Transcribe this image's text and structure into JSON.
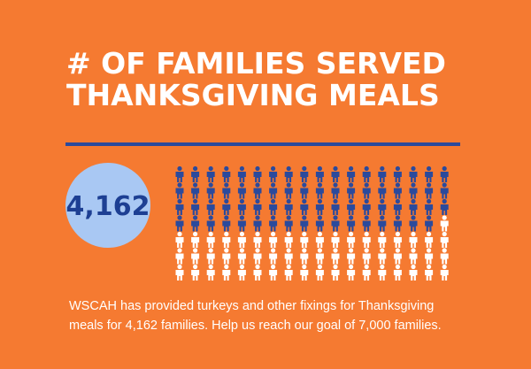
{
  "header": {
    "title_line1": "# OF FAMILIES SERVED",
    "title_line2": "THANKSGIVING MEALS"
  },
  "stat": {
    "value": "4,162"
  },
  "body": {
    "line1": "WSCAH has provided turkeys and other fixings for Thanksgiving",
    "line2": "meals for 4,162 families. Help us reach our goal of 7,000 families."
  }
}
